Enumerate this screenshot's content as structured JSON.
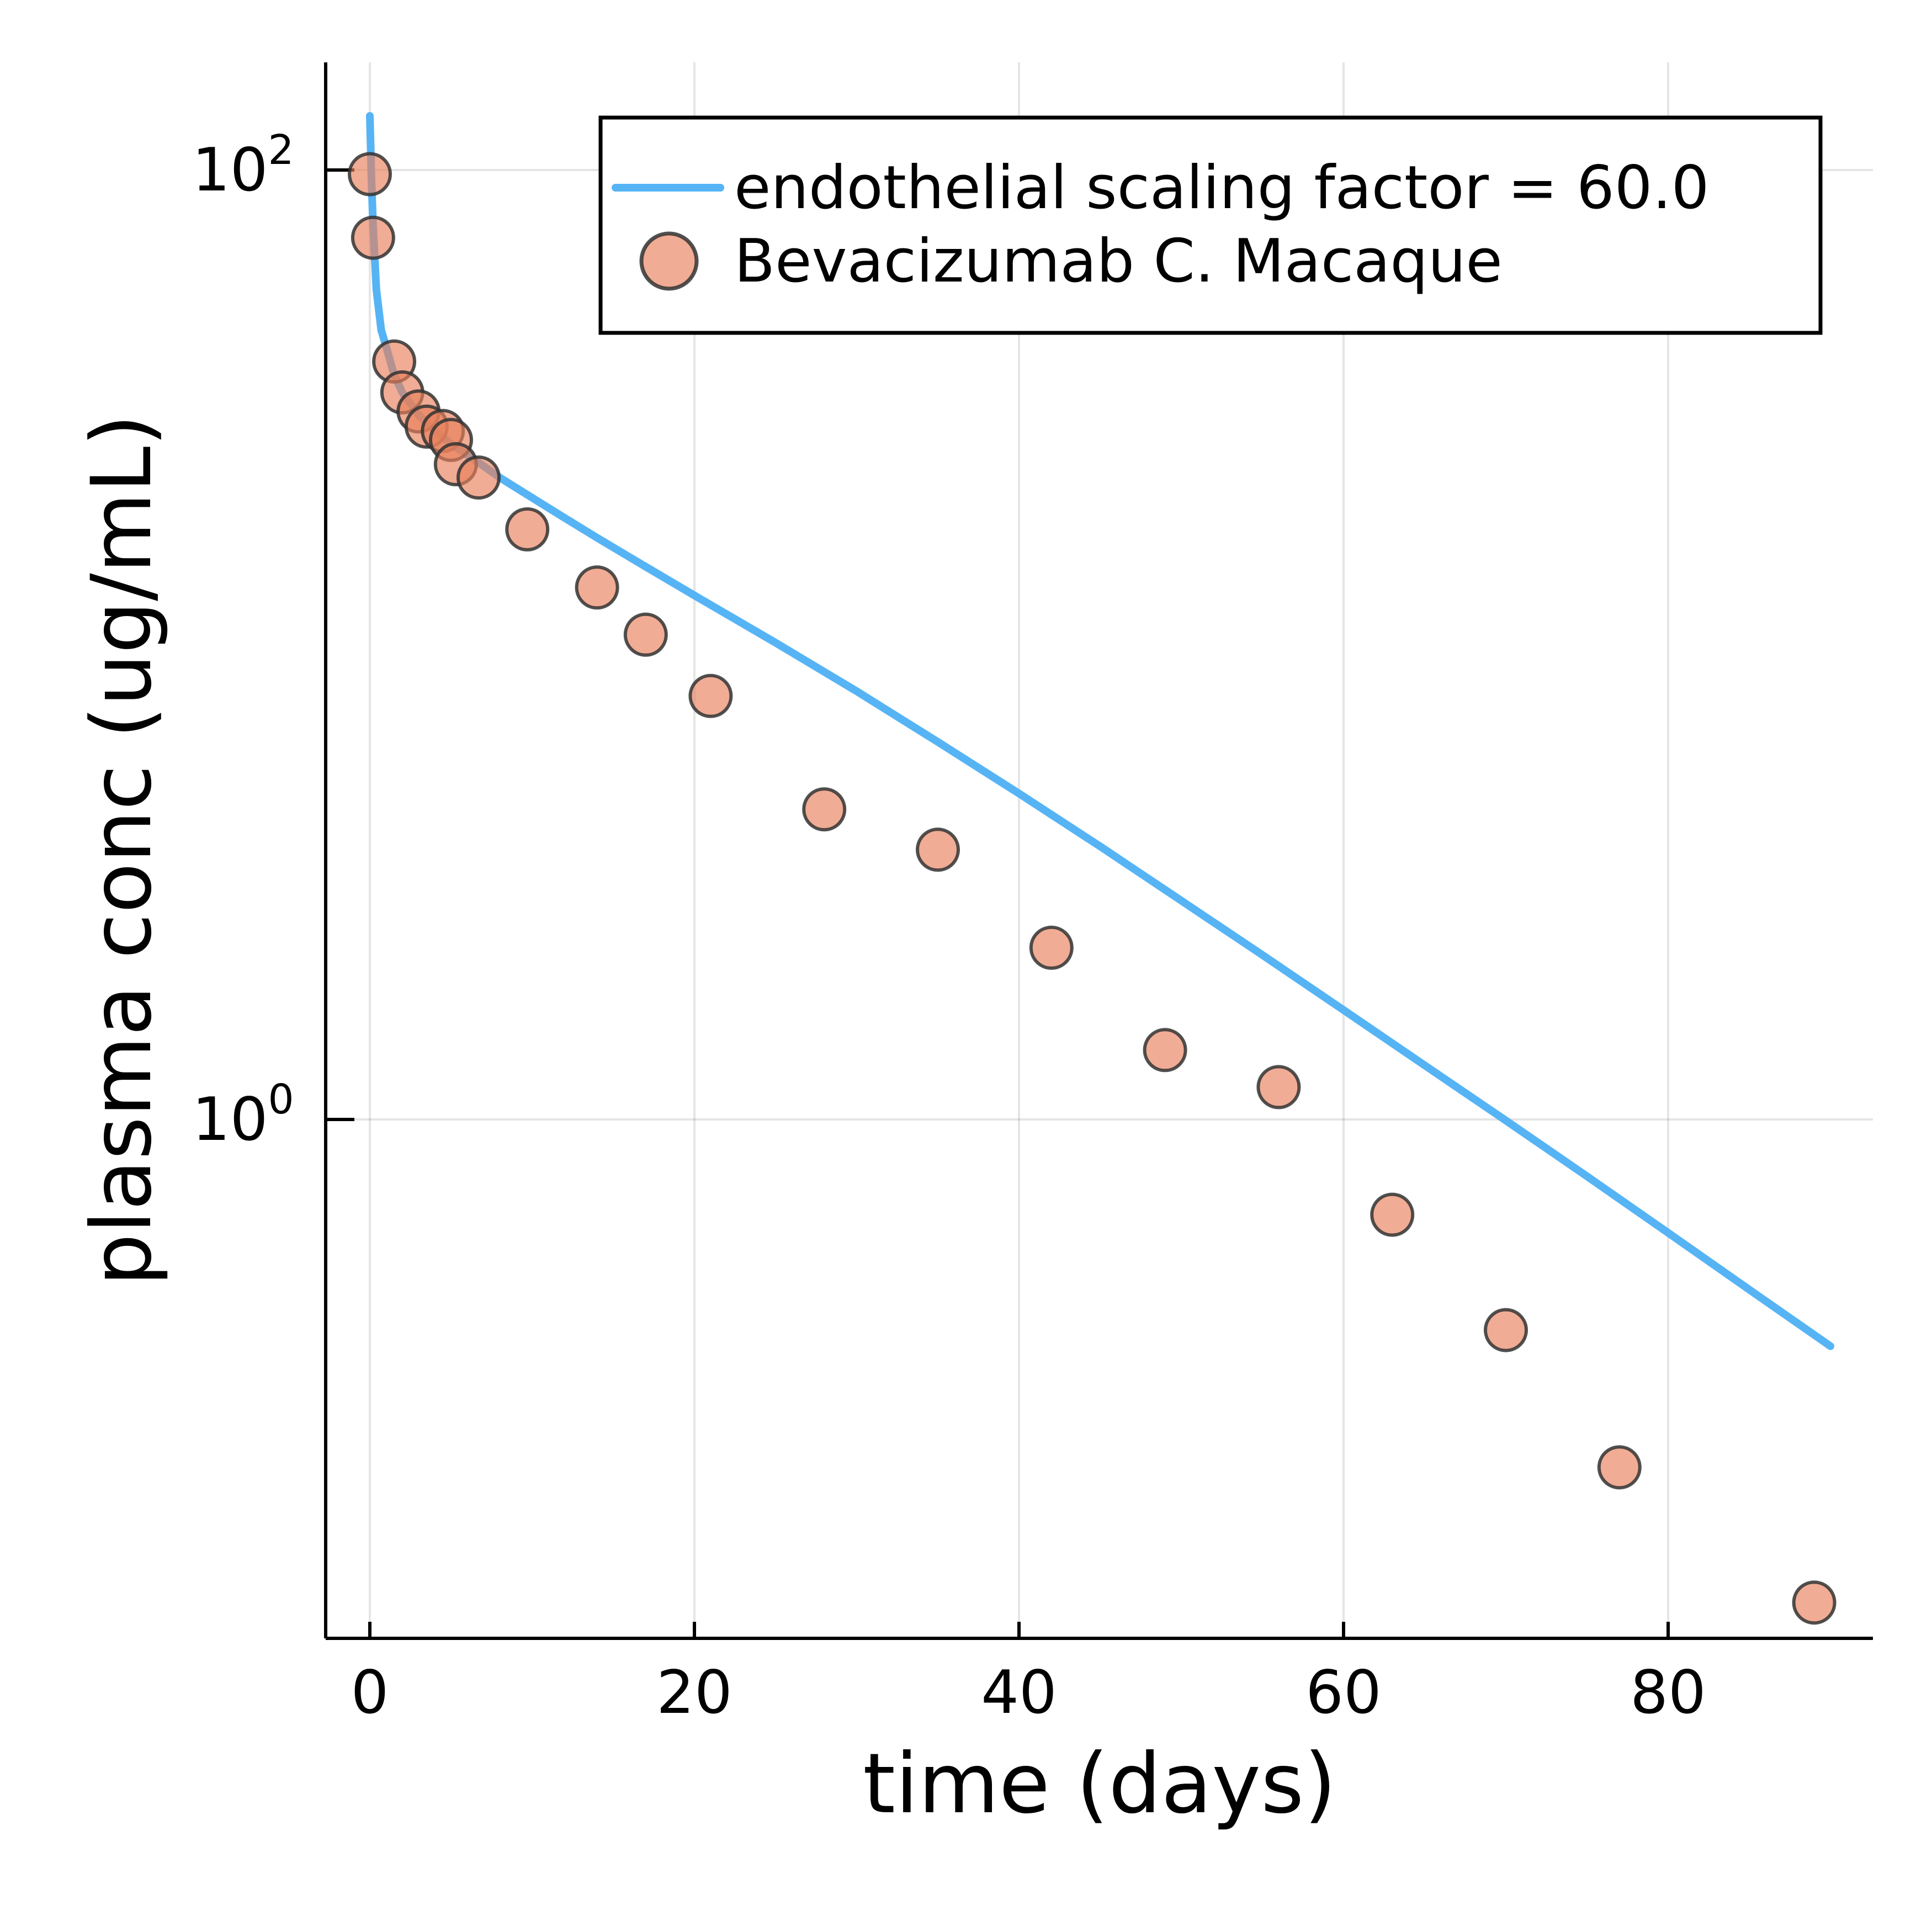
{
  "chart_data": {
    "type": "scatter",
    "xlabel": "time (days)",
    "ylabel": "plasma conc (ug/mL)",
    "xlim": [
      -3,
      93
    ],
    "ylim_log10": [
      -1.09,
      2.24
    ],
    "yscale": "log10",
    "grid": true,
    "legend_position": "top-right",
    "x_ticks": [
      {
        "value": 0,
        "label": "0"
      },
      {
        "value": 20,
        "label": "20"
      },
      {
        "value": 40,
        "label": "40"
      },
      {
        "value": 60,
        "label": "60"
      },
      {
        "value": 80,
        "label": "80"
      }
    ],
    "y_ticks": [
      {
        "value": 1,
        "base": "10",
        "exp": "0"
      },
      {
        "value": 100,
        "base": "10",
        "exp": "2"
      }
    ],
    "series": [
      {
        "name": "endothelial scaling factor = 60.0",
        "kind": "line",
        "color": "#56b4f5",
        "x": [
          0,
          0.05,
          0.1,
          0.2,
          0.4,
          0.7,
          1,
          1.5,
          2,
          3,
          4,
          5,
          6,
          7,
          8,
          10,
          12,
          14,
          17,
          20,
          25,
          30,
          35,
          40,
          45,
          50,
          55,
          60,
          65,
          70,
          75,
          80,
          85,
          90
        ],
        "y": [
          130,
          112,
          96,
          76,
          56,
          46,
          42.5,
          37,
          34,
          30.5,
          28.2,
          26.5,
          25.1,
          23.8,
          22.5,
          20.4,
          18.5,
          16.8,
          14.6,
          12.7,
          10.1,
          7.98,
          6.24,
          4.86,
          3.76,
          2.89,
          2.22,
          1.7,
          1.3,
          0.995,
          0.759,
          0.577,
          0.438,
          0.333
        ]
      },
      {
        "name": "Bevacizumab C. Macaque",
        "kind": "scatter",
        "color": "#e8805a",
        "x": [
          0,
          0.2,
          1.5,
          2,
          3,
          3.5,
          4.5,
          5,
          5.3,
          6.7,
          9.7,
          14,
          17,
          21,
          28,
          35,
          42,
          49,
          56,
          63,
          70,
          77,
          89
        ],
        "y": [
          98,
          72,
          39.5,
          34,
          31,
          28.8,
          28.2,
          27,
          24,
          22.5,
          17.5,
          13.2,
          10.5,
          7.8,
          4.5,
          3.7,
          2.3,
          1.4,
          1.17,
          0.63,
          0.36,
          0.185,
          0.096
        ]
      }
    ]
  }
}
